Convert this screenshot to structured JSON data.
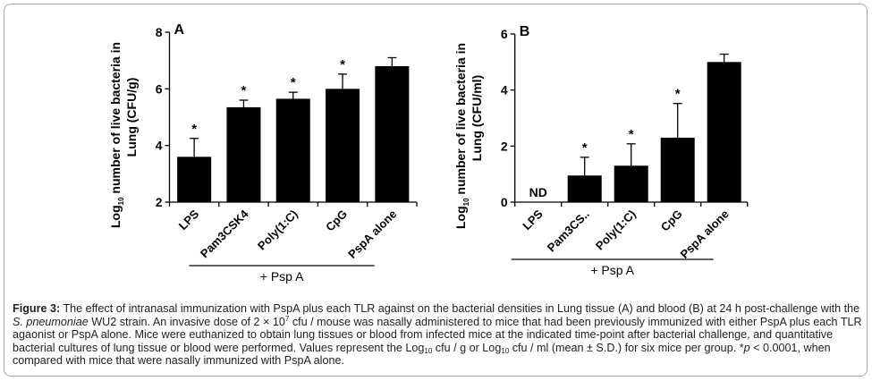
{
  "chart_data": [
    {
      "type": "bar",
      "panel": "A",
      "title": "A",
      "xlabel": "",
      "ylabel": "Log10 number of live bacteria in Lung (CFU/g)",
      "ylabel_line1_prefix": "Log",
      "ylabel_line1_sub": "10",
      "ylabel_line1_rest": " number of live bacteria in",
      "ylabel_line2": "Lung (CFU/g)",
      "ylim": [
        2,
        8
      ],
      "yticks": [
        2,
        4,
        6,
        8
      ],
      "categories": [
        "LPS",
        "Pam3CSK4",
        "Poly(1:C)",
        "CpG",
        "PspA alone"
      ],
      "values": [
        3.6,
        5.35,
        5.65,
        6.0,
        6.8
      ],
      "error_upper": [
        4.25,
        5.6,
        5.88,
        6.52,
        7.1
      ],
      "significance": [
        "*",
        "*",
        "*",
        "*",
        ""
      ],
      "bracket_label": "+ Psp A",
      "bracket_span": [
        "LPS",
        "CpG"
      ],
      "grid": false
    },
    {
      "type": "bar",
      "panel": "B",
      "title": "B",
      "xlabel": "",
      "ylabel": "Log10 number of live bacteria in Lung (CFU/ml)",
      "ylabel_line1_prefix": "Log",
      "ylabel_line1_sub": "10",
      "ylabel_line1_rest": " number of live bacteria in",
      "ylabel_line2": "Lung (CFU/ml)",
      "ylim": [
        0,
        6
      ],
      "yticks": [
        0,
        2,
        4,
        6
      ],
      "categories": [
        "LPS",
        "Pam3CS..",
        "Poly(1:C)",
        "CpG",
        "PspA alone"
      ],
      "values": [
        null,
        0.95,
        1.3,
        2.3,
        5.0
      ],
      "error_upper": [
        null,
        1.6,
        2.08,
        3.52,
        5.28
      ],
      "significance": [
        "",
        "*",
        "*",
        "*",
        ""
      ],
      "annotations": [
        {
          "category": "LPS",
          "text": "ND"
        }
      ],
      "bracket_label": "+ Psp A",
      "bracket_span": [
        "LPS",
        "CpG"
      ],
      "grid": false
    }
  ],
  "caption": {
    "label": "Figure 3:",
    "t1": " The effect of intranasal immunization with PspA plus each TLR against on the bacterial densities in Lung tissue (A) and blood (B) at 24 h post-challenge with the ",
    "species": "S. pneumoniae",
    "t2": " WU2 strain. An invasive dose of 2 × 10",
    "exp": "7",
    "t3": " cfu / mouse was nasally administered to mice that had been previously immunized with either PspA plus each TLR agaonist or PspA alone. Mice were euthanized to obtain lung tissues or blood from infected mice at the indicated time-point after bacterial challenge, and quantitative bacterial cultures of lung tissue or blood were performed. Values represent the Log",
    "sub1": "10",
    "t4": " cfu / g or Log",
    "sub2": "10",
    "t5": " cfu / ml (mean ± S.D.) for six mice per group. *",
    "p": "p",
    "t6": " < 0.0001, when compared with mice that were nasally immunized with PspA alone."
  }
}
